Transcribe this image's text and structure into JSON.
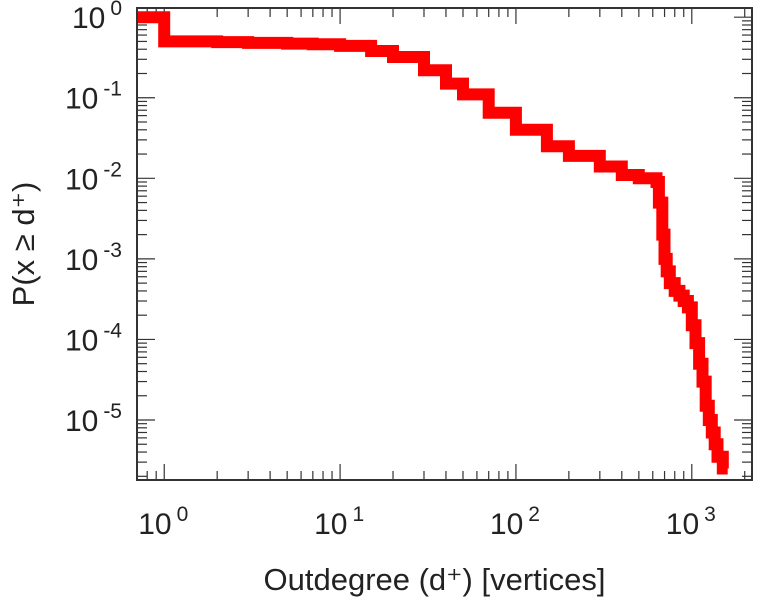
{
  "chart_data": {
    "type": "line",
    "title": "",
    "xlabel": "Outdegree (d⁺) [vertices]",
    "ylabel": "P(x ≥ d⁺)",
    "x_scale": "log",
    "y_scale": "log",
    "xlim": [
      0.7,
      2200
    ],
    "ylim": [
      1.8e-06,
      1.3
    ],
    "grid": false,
    "legend": "none",
    "x_tick_labels": [
      "10^0",
      "10^1",
      "10^2",
      "10^3"
    ],
    "y_tick_labels": [
      "10^0",
      "10^-1",
      "10^-2",
      "10^-3",
      "10^-4",
      "10^-5"
    ],
    "series": [
      {
        "color": "#ff0000",
        "step": true,
        "x": [
          0.7,
          1,
          1,
          2,
          3,
          5,
          7,
          10,
          15,
          20,
          30,
          40,
          50,
          70,
          100,
          150,
          200,
          300,
          400,
          500,
          600,
          630,
          650,
          680,
          700,
          720,
          750,
          800,
          850,
          900,
          950,
          1000,
          1050,
          1100,
          1150,
          1200,
          1250,
          1300,
          1350,
          1400,
          1500,
          1600
        ],
        "y": [
          1.0,
          1.0,
          0.5,
          0.49,
          0.48,
          0.47,
          0.46,
          0.44,
          0.38,
          0.32,
          0.22,
          0.15,
          0.11,
          0.065,
          0.04,
          0.025,
          0.019,
          0.014,
          0.011,
          0.01,
          0.01,
          0.009,
          0.005,
          0.002,
          0.001,
          0.0007,
          0.0005,
          0.0004,
          0.00035,
          0.0003,
          0.00025,
          0.00015,
          9e-05,
          5e-05,
          3e-05,
          1.5e-05,
          1e-05,
          7e-06,
          5e-06,
          3.5e-06,
          2.5e-06,
          2.5e-06
        ]
      }
    ]
  }
}
